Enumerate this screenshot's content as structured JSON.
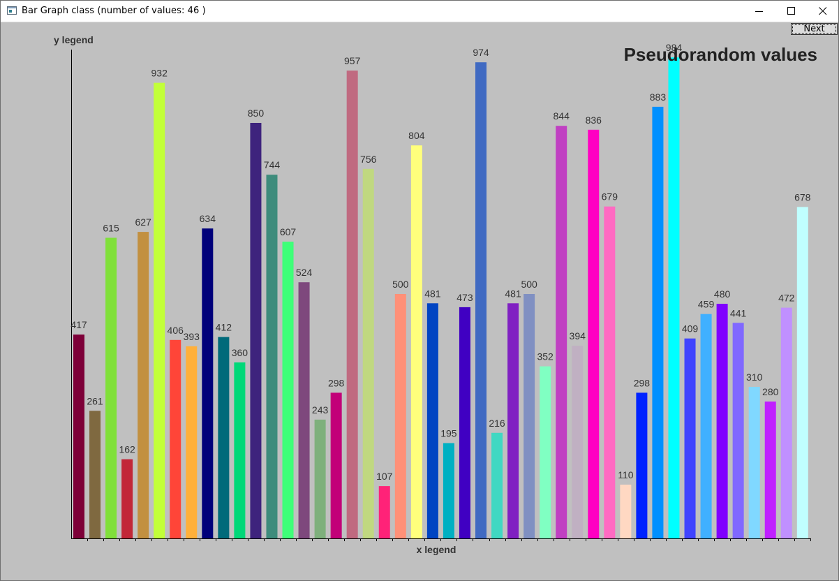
{
  "window": {
    "title": "Bar Graph class (number of values: 46 )"
  },
  "controls": {
    "next_label": "Next"
  },
  "chart_data": {
    "type": "bar",
    "title": "Pseudorandom values",
    "xlabel": "x legend",
    "ylabel": "y legend",
    "ylim": [
      0,
      1000
    ],
    "grid": false,
    "values": [
      417,
      261,
      615,
      162,
      627,
      932,
      406,
      393,
      634,
      412,
      360,
      850,
      744,
      607,
      524,
      243,
      298,
      957,
      756,
      107,
      500,
      804,
      481,
      195,
      473,
      974,
      216,
      481,
      500,
      352,
      844,
      394,
      836,
      679,
      110,
      298,
      883,
      984,
      409,
      459,
      480,
      441,
      310,
      280,
      472,
      678
    ],
    "colors": [
      "#7d0038",
      "#7f6940",
      "#80e03a",
      "#c22738",
      "#c29040",
      "#c2ff38",
      "#ff4538",
      "#ffb03a",
      "#00007a",
      "#006a7a",
      "#00d878",
      "#3e237d",
      "#3e8c7c",
      "#3eff78",
      "#7e487d",
      "#7eb07c",
      "#c20078",
      "#c06a80",
      "#c0d880",
      "#ff2278",
      "#ff9078",
      "#ffff7c",
      "#0044c2",
      "#00b0c2",
      "#4000c2",
      "#406ac2",
      "#40d8c2",
      "#8020c2",
      "#8090c2",
      "#80ffc2",
      "#c040c2",
      "#c0b0c2",
      "#ff00c2",
      "#ff6ac2",
      "#ffd8c2",
      "#0022ff",
      "#0090ff",
      "#00ffff",
      "#4044ff",
      "#40b0ff",
      "#8000ff",
      "#8068ff",
      "#80d8ff",
      "#c020ff",
      "#c090ff",
      "#c0ffff"
    ]
  }
}
